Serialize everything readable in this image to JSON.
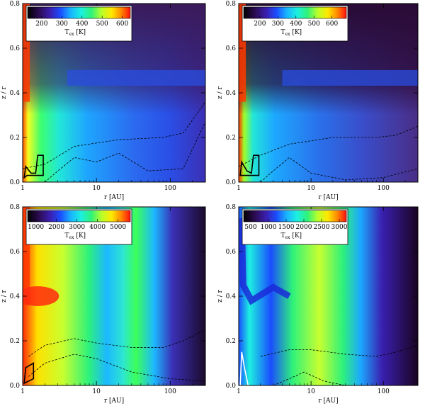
{
  "chart_data": [
    {
      "type": "heatmap",
      "position": "top-left",
      "xlabel": "r [AU]",
      "ylabel": "z / r",
      "x_scale": "log",
      "xlim": [
        1,
        300
      ],
      "ylim": [
        0,
        0.8
      ],
      "x_ticks": [
        "1",
        "10",
        "100"
      ],
      "y_ticks": [
        "0.0",
        "0.2",
        "0.4",
        "0.6",
        "0.8"
      ],
      "colorbar": {
        "label": "T_ex [K]",
        "sub": "ex",
        "ticks": [
          200,
          300,
          400,
          500,
          600
        ],
        "range": [
          130,
          640
        ]
      },
      "features": {
        "hot_inner_wall": true,
        "blue_layer_z": 0.47
      },
      "dashed_contours": [
        [
          [
            1,
            0.06
          ],
          [
            2,
            0.08
          ],
          [
            5,
            0.16
          ],
          [
            20,
            0.19
          ],
          [
            80,
            0.2
          ],
          [
            150,
            0.22
          ],
          [
            300,
            0.36
          ]
        ],
        [
          [
            2,
            0.0
          ],
          [
            3,
            0.05
          ],
          [
            5,
            0.11
          ],
          [
            10,
            0.09
          ],
          [
            20,
            0.13
          ],
          [
            50,
            0.05
          ],
          [
            150,
            0.06
          ],
          [
            300,
            0.27
          ]
        ]
      ],
      "solid_contour": [
        [
          1.05,
          0.02
        ],
        [
          1.1,
          0.07
        ],
        [
          1.3,
          0.04
        ],
        [
          1.5,
          0.04
        ],
        [
          1.6,
          0.12
        ],
        [
          1.9,
          0.12
        ],
        [
          1.9,
          0.03
        ],
        [
          1.15,
          0.03
        ]
      ]
    },
    {
      "type": "heatmap",
      "position": "top-right",
      "xlabel": "r [AU]",
      "ylabel": "z / r",
      "x_scale": "log",
      "xlim": [
        1,
        300
      ],
      "ylim": [
        0,
        0.8
      ],
      "x_ticks": [
        "1",
        "10",
        "100"
      ],
      "y_ticks": [
        "0.0",
        "0.2",
        "0.4",
        "0.6",
        "0.8"
      ],
      "colorbar": {
        "label": "T_ex [K]",
        "sub": "ex",
        "ticks": [
          200,
          300,
          400,
          500,
          600
        ],
        "range": [
          110,
          680
        ]
      },
      "features": {
        "hot_inner_wall": true,
        "blue_layer_z": 0.47
      },
      "dashed_contours": [
        [
          [
            1,
            0.07
          ],
          [
            2,
            0.12
          ],
          [
            5,
            0.17
          ],
          [
            20,
            0.2
          ],
          [
            80,
            0.2
          ],
          [
            150,
            0.21
          ],
          [
            300,
            0.25
          ]
        ],
        [
          [
            2,
            0.0
          ],
          [
            3,
            0.05
          ],
          [
            5,
            0.11
          ],
          [
            10,
            0.04
          ],
          [
            30,
            0.01
          ],
          [
            100,
            0.02
          ],
          [
            300,
            0.06
          ]
        ]
      ],
      "solid_contour": [
        [
          1.05,
          0.03
        ],
        [
          1.1,
          0.09
        ],
        [
          1.3,
          0.05
        ],
        [
          1.5,
          0.04
        ],
        [
          1.6,
          0.12
        ],
        [
          1.9,
          0.12
        ],
        [
          1.9,
          0.03
        ],
        [
          1.15,
          0.03
        ]
      ]
    },
    {
      "type": "heatmap",
      "position": "bottom-left",
      "xlabel": "r [AU]",
      "ylabel": "z / r",
      "x_scale": "log",
      "xlim": [
        1,
        300
      ],
      "ylim": [
        0,
        0.8
      ],
      "x_ticks": [
        "1",
        "10",
        "100"
      ],
      "y_ticks": [
        "0.0",
        "0.2",
        "0.4",
        "0.6",
        "0.8"
      ],
      "colorbar": {
        "label": "T_ex [K]",
        "sub": "ex",
        "ticks": [
          1000,
          2000,
          3000,
          4000,
          5000
        ],
        "range": [
          600,
          5600
        ]
      },
      "features": {
        "hot_inner_wall": true,
        "red_blob_z": 0.4
      },
      "dashed_contours": [
        [
          [
            1.2,
            0.13
          ],
          [
            2,
            0.18
          ],
          [
            5,
            0.21
          ],
          [
            10,
            0.19
          ],
          [
            30,
            0.17
          ],
          [
            80,
            0.17
          ],
          [
            150,
            0.2
          ],
          [
            300,
            0.25
          ]
        ],
        [
          [
            1.2,
            0.04
          ],
          [
            2,
            0.1
          ],
          [
            5,
            0.14
          ],
          [
            10,
            0.12
          ],
          [
            30,
            0.06
          ],
          [
            100,
            0.03
          ],
          [
            300,
            0.02
          ]
        ]
      ],
      "solid_contour": [
        [
          1.05,
          0.01
        ],
        [
          1.1,
          0.08
        ],
        [
          1.4,
          0.1
        ],
        [
          1.4,
          0.03
        ]
      ]
    },
    {
      "type": "heatmap",
      "position": "bottom-right",
      "xlabel": "r [AU]",
      "ylabel": "z / r",
      "x_scale": "log",
      "xlim": [
        1,
        300
      ],
      "ylim": [
        0,
        0.8
      ],
      "x_ticks": [
        "1",
        "10",
        "100"
      ],
      "y_ticks": [
        "0.0",
        "0.2",
        "0.4",
        "0.6",
        "0.8"
      ],
      "colorbar": {
        "label": "T_ex [K]",
        "sub": "ex",
        "ticks": [
          500,
          1000,
          1500,
          2000,
          2500,
          3000
        ],
        "range": [
          300,
          3200
        ]
      },
      "features": {
        "blue_arm_z": 0.4
      },
      "dashed_contours": [
        [
          [
            2,
            0.13
          ],
          [
            5,
            0.16
          ],
          [
            10,
            0.16
          ],
          [
            30,
            0.14
          ],
          [
            80,
            0.13
          ],
          [
            150,
            0.15
          ],
          [
            300,
            0.18
          ]
        ],
        [
          [
            3,
            0.0
          ],
          [
            5,
            0.03
          ],
          [
            8,
            0.06
          ],
          [
            15,
            0.02
          ],
          [
            30,
            0.0
          ]
        ]
      ],
      "solid_contour": [
        [
          1.05,
          0.0
        ],
        [
          1.1,
          0.15
        ],
        [
          1.2,
          0.08
        ],
        [
          1.35,
          0.0
        ]
      ],
      "solid_contour_color": "#ffffff"
    }
  ]
}
